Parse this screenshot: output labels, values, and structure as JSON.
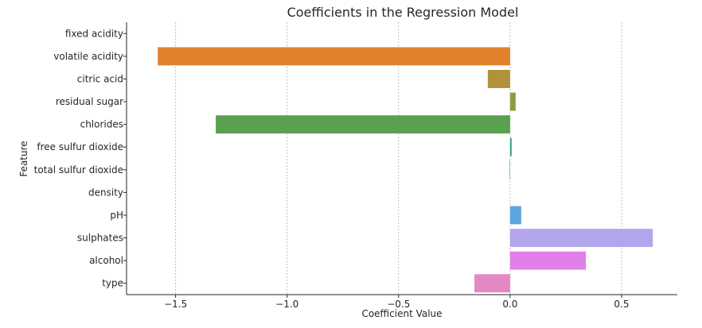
{
  "chart_data": {
    "type": "bar",
    "orientation": "horizontal",
    "title": "Coefficients in the Regression Model",
    "xlabel": "Coefficient Value",
    "ylabel": "Feature",
    "xlim": [
      -1.72,
      0.75
    ],
    "xticks": [
      -1.5,
      -1.0,
      -0.5,
      0.0,
      0.5
    ],
    "xtick_labels": [
      "−1.5",
      "−1.0",
      "−0.5",
      "0.0",
      "0.5"
    ],
    "grid": "vertical dashed",
    "categories": [
      "fixed acidity",
      "volatile acidity",
      "citric acid",
      "residual sugar",
      "chlorides",
      "free sulfur dioxide",
      "total sulfur dioxide",
      "density",
      "pH",
      "sulphates",
      "alcohol",
      "type"
    ],
    "values": [
      0.0,
      -1.58,
      -0.1,
      0.025,
      -1.32,
      0.007,
      -0.002,
      0.0,
      0.05,
      0.64,
      0.34,
      -0.16
    ],
    "colors": [
      "#3274a1",
      "#e1812c",
      "#b0923b",
      "#8f9c40",
      "#59a14f",
      "#3a9e8a",
      "#2ba5a8",
      "#4a9fd2",
      "#5da5e0",
      "#b3a5ec",
      "#e17fe8",
      "#e488c3"
    ]
  }
}
